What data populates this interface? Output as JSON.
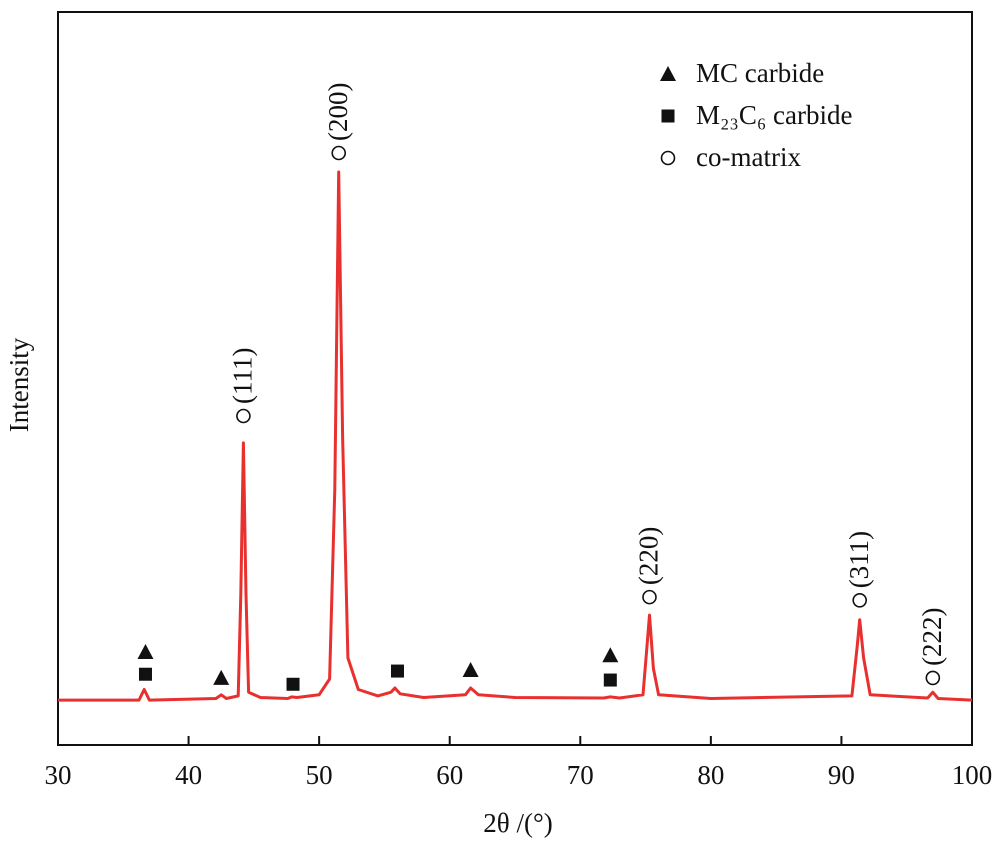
{
  "chart_data": {
    "type": "line",
    "xlabel": "2θ /(°)",
    "ylabel": "Intensity",
    "xlim": [
      30,
      100
    ],
    "ylim": [
      -8.5,
      130.3
    ],
    "xticks": [
      30,
      40,
      50,
      60,
      70,
      80,
      90,
      100
    ],
    "color": "#e8302e",
    "x": [
      30,
      36.2,
      36.6,
      37.0,
      42.1,
      42.5,
      42.9,
      43.8,
      44.0,
      44.2,
      44.4,
      44.6,
      45.5,
      47.6,
      47.9,
      48.3,
      50.0,
      50.8,
      51.2,
      51.5,
      51.8,
      52.2,
      53.0,
      54.5,
      55.5,
      55.8,
      56.2,
      58.0,
      61.2,
      61.6,
      62.2,
      65.0,
      71.8,
      72.3,
      73.0,
      74.8,
      75.1,
      75.3,
      75.6,
      76.0,
      80.0,
      90.8,
      91.2,
      91.4,
      91.7,
      92.2,
      96.6,
      97.0,
      97.4,
      100
    ],
    "values": [
      0,
      0,
      2,
      0,
      0.3,
      1,
      0.3,
      0.8,
      20,
      48.7,
      20,
      1.5,
      0.5,
      0.3,
      0.6,
      0.5,
      1,
      4,
      40,
      100,
      50,
      8,
      2,
      0.8,
      1.5,
      2.3,
      1.2,
      0.5,
      1,
      2.3,
      1,
      0.5,
      0.4,
      0.6,
      0.4,
      1,
      10,
      16.1,
      6,
      1,
      0.3,
      0.8,
      10,
      15.2,
      8,
      1,
      0.4,
      1.5,
      0.3,
      0
    ],
    "legend": {
      "position": "upper right",
      "entries": [
        {
          "name": "MC carbide",
          "symbol": "triangle"
        },
        {
          "name": "M₂₃C₆ carbide",
          "symbol": "square"
        },
        {
          "name": "co-matrix",
          "symbol": "circle"
        }
      ]
    },
    "annotations": [
      {
        "symbol": "triangle",
        "x": 36.7,
        "y": 9.1
      },
      {
        "symbol": "triangle",
        "x": 42.5,
        "y": 4.2
      },
      {
        "symbol": "triangle",
        "x": 61.6,
        "y": 5.7
      },
      {
        "symbol": "triangle",
        "x": 72.3,
        "y": 8.5
      },
      {
        "symbol": "square",
        "x": 36.7,
        "y": 4.9
      },
      {
        "symbol": "square",
        "x": 48.0,
        "y": 3.0
      },
      {
        "symbol": "square",
        "x": 56.0,
        "y": 5.5
      },
      {
        "symbol": "square",
        "x": 72.3,
        "y": 3.8
      },
      {
        "symbol": "circle",
        "x": 44.2,
        "y": 53.8,
        "label": "(111)"
      },
      {
        "symbol": "circle",
        "x": 51.5,
        "y": 103.6,
        "label": "(200)"
      },
      {
        "symbol": "circle",
        "x": 75.3,
        "y": 19.5,
        "label": "(220)"
      },
      {
        "symbol": "circle",
        "x": 91.4,
        "y": 18.9,
        "label": "(311)"
      },
      {
        "symbol": "circle",
        "x": 97.0,
        "y": 4.2,
        "label": "(222)"
      }
    ]
  }
}
